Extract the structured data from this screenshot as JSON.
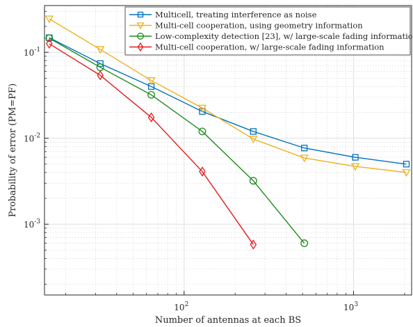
{
  "chart_data": {
    "type": "line",
    "title": "",
    "xlabel": "Number of antennas at each BS",
    "ylabel": "Probability of error (PM=PF)",
    "xscale": "log",
    "yscale": "log",
    "xlim": [
      15,
      2200
    ],
    "ylim": [
      0.00015,
      0.35
    ],
    "grid": true,
    "legend_position": "top-right",
    "x_ticks": [
      {
        "value": 100,
        "base": "10",
        "exp": "2"
      },
      {
        "value": 1000,
        "base": "10",
        "exp": "3"
      }
    ],
    "y_ticks": [
      {
        "value": 0.1,
        "base": "10",
        "exp": "-1"
      },
      {
        "value": 0.01,
        "base": "10",
        "exp": "-2"
      },
      {
        "value": 0.001,
        "base": "10",
        "exp": "-3"
      }
    ],
    "series": [
      {
        "name": "Multicell, treating interference as noise",
        "color": "#0072BD",
        "marker": "square",
        "x": [
          16,
          32,
          64,
          128,
          256,
          512,
          1024,
          2048
        ],
        "y": [
          0.148,
          0.074,
          0.04,
          0.0205,
          0.012,
          0.0077,
          0.006,
          0.005
        ]
      },
      {
        "name": "Multi-cell cooperation, using geometry information",
        "color": "#EDB120",
        "marker": "triangle-down",
        "x": [
          16,
          32,
          64,
          128,
          256,
          512,
          1024,
          2048
        ],
        "y": [
          0.245,
          0.108,
          0.047,
          0.0225,
          0.0098,
          0.0059,
          0.0047,
          0.004
        ]
      },
      {
        "name": "Low-complexity detection [23], w/ large-scale fading information",
        "color": "#1E8B1E",
        "marker": "circle",
        "x": [
          16,
          32,
          64,
          128,
          256,
          512
        ],
        "y": [
          0.146,
          0.067,
          0.032,
          0.012,
          0.0032,
          0.0006
        ]
      },
      {
        "name": "Multi-cell cooperation, w/ large-scale fading information",
        "color": "#E31A1C",
        "marker": "diamond",
        "x": [
          16,
          32,
          64,
          128,
          256
        ],
        "y": [
          0.126,
          0.054,
          0.0175,
          0.0041,
          0.00058
        ]
      }
    ]
  }
}
